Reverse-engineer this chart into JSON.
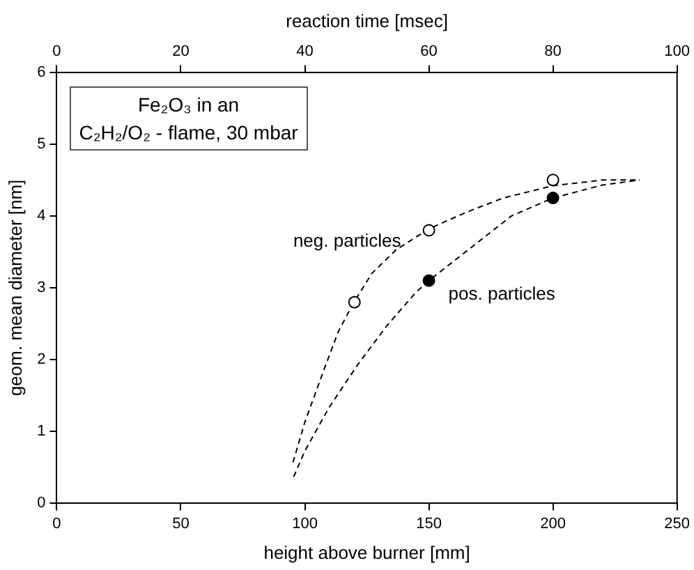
{
  "chart_data": {
    "type": "scatter",
    "xlabel": "height above burner [mm]",
    "ylabel": "geom. mean diameter [nm]",
    "x2label": "reaction time [msec]",
    "xlim": [
      0,
      250
    ],
    "xticks": [
      0,
      50,
      100,
      150,
      200,
      250
    ],
    "ylim": [
      0,
      6
    ],
    "yticks": [
      0,
      1,
      2,
      3,
      4,
      5,
      6
    ],
    "x2lim": [
      0,
      100
    ],
    "x2ticks": [
      0,
      20,
      40,
      60,
      80,
      100
    ],
    "grid": false,
    "legend": false,
    "marker": "circle",
    "annotations": [
      "Fe₂O₃ in an\nC₂H₂/O₂ - flame, 30 mbar"
    ],
    "series": [
      {
        "name": "neg. particles",
        "color": "#000000",
        "x": [
          120,
          150,
          200
        ],
        "values": [
          2.8,
          3.8,
          4.5
        ]
      },
      {
        "name": "pos. particles",
        "color": "#000000",
        "x": [
          150,
          200
        ],
        "values": [
          3.1,
          4.25
        ]
      },
      {
        "type": "line",
        "line_style": "dashed",
        "marker": "none",
        "color": "#000000",
        "x": [
          95.2,
          100,
          107.8,
          113.6,
          119.8,
          127,
          136.8,
          150,
          165,
          180,
          200,
          220,
          235
        ],
        "values": [
          0.57,
          1.13,
          1.87,
          2.4,
          2.8,
          3.2,
          3.53,
          3.82,
          4.05,
          4.25,
          4.42,
          4.5,
          4.5
        ]
      },
      {
        "type": "line",
        "line_style": "dashed",
        "marker": "none",
        "color": "#000000",
        "x": [
          95.5,
          100,
          109.7,
          121.3,
          133,
          144.6,
          150,
          165.9,
          183.3,
          200,
          220,
          235
        ],
        "values": [
          0.37,
          0.73,
          1.33,
          1.93,
          2.47,
          2.93,
          3.1,
          3.53,
          4.0,
          4.25,
          4.43,
          4.5
        ]
      }
    ]
  }
}
